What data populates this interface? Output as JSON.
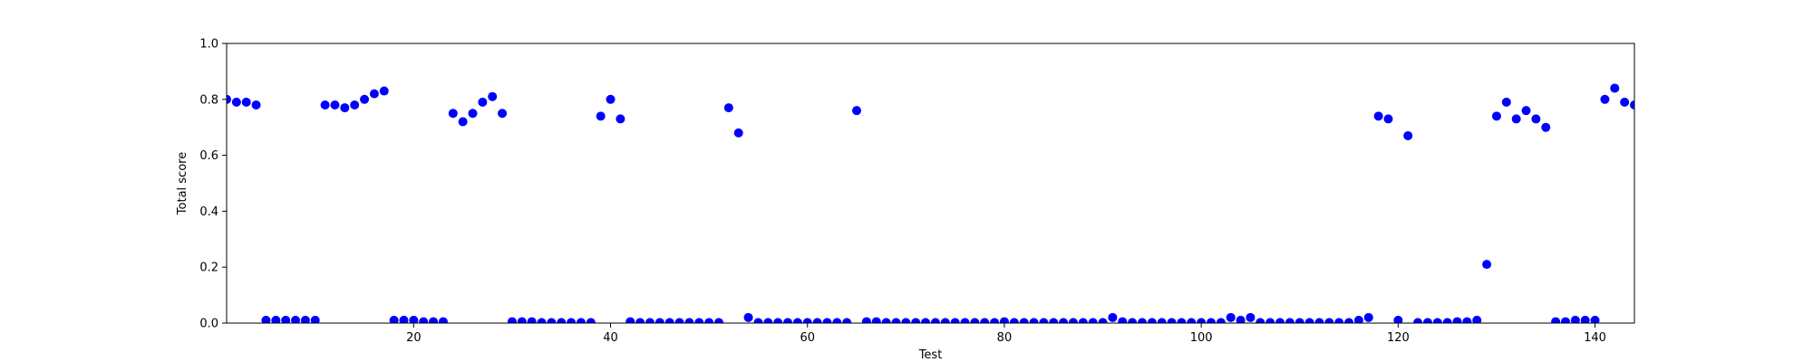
{
  "chart_data": {
    "type": "scatter",
    "title": "",
    "xlabel": "Test",
    "ylabel": "Total score",
    "xlim": [
      1,
      144
    ],
    "ylim": [
      0.0,
      1.0
    ],
    "xticks": [
      20,
      40,
      60,
      80,
      100,
      120,
      140
    ],
    "yticks": [
      0.0,
      0.2,
      0.4,
      0.6,
      0.8,
      1.0
    ],
    "xtick_labels": [
      "20",
      "40",
      "60",
      "80",
      "100",
      "120",
      "140"
    ],
    "ytick_labels": [
      "0.0",
      "0.2",
      "0.4",
      "0.6",
      "0.8",
      "1.0"
    ],
    "grid": false,
    "marker_color": "#0000ff",
    "x": [
      1,
      2,
      3,
      4,
      5,
      6,
      7,
      8,
      9,
      10,
      11,
      12,
      13,
      14,
      15,
      16,
      17,
      18,
      19,
      20,
      21,
      22,
      23,
      24,
      25,
      26,
      27,
      28,
      29,
      30,
      31,
      32,
      33,
      34,
      35,
      36,
      37,
      38,
      39,
      40,
      41,
      42,
      43,
      44,
      45,
      46,
      47,
      48,
      49,
      50,
      51,
      52,
      53,
      54,
      55,
      56,
      57,
      58,
      59,
      60,
      61,
      62,
      63,
      64,
      65,
      66,
      67,
      68,
      69,
      70,
      71,
      72,
      73,
      74,
      75,
      76,
      77,
      78,
      79,
      80,
      81,
      82,
      83,
      84,
      85,
      86,
      87,
      88,
      89,
      90,
      91,
      92,
      93,
      94,
      95,
      96,
      97,
      98,
      99,
      100,
      101,
      102,
      103,
      104,
      105,
      106,
      107,
      108,
      109,
      110,
      111,
      112,
      113,
      114,
      115,
      116,
      117,
      118,
      119,
      120,
      121,
      122,
      123,
      124,
      125,
      126,
      127,
      128,
      129,
      130,
      131,
      132,
      133,
      134,
      135,
      136,
      137,
      138,
      139,
      140,
      141,
      142,
      143,
      144
    ],
    "y": [
      0.8,
      0.79,
      0.79,
      0.78,
      0.01,
      0.01,
      0.01,
      0.01,
      0.01,
      0.01,
      0.78,
      0.78,
      0.77,
      0.78,
      0.8,
      0.82,
      0.83,
      0.01,
      0.01,
      0.01,
      0.005,
      0.005,
      0.005,
      0.75,
      0.72,
      0.75,
      0.79,
      0.81,
      0.75,
      0.005,
      0.005,
      0.005,
      0.002,
      0.002,
      0.002,
      0.002,
      0.002,
      0.002,
      0.74,
      0.8,
      0.73,
      0.005,
      0.002,
      0.002,
      0.002,
      0.002,
      0.002,
      0.002,
      0.002,
      0.002,
      0.002,
      0.77,
      0.68,
      0.02,
      0.002,
      0.002,
      0.002,
      0.002,
      0.002,
      0.002,
      0.002,
      0.002,
      0.002,
      0.002,
      0.76,
      0.005,
      0.005,
      0.002,
      0.002,
      0.002,
      0.002,
      0.002,
      0.002,
      0.002,
      0.002,
      0.002,
      0.002,
      0.002,
      0.002,
      0.005,
      0.002,
      0.002,
      0.002,
      0.002,
      0.002,
      0.002,
      0.002,
      0.002,
      0.002,
      0.002,
      0.02,
      0.005,
      0.002,
      0.002,
      0.002,
      0.002,
      0.002,
      0.002,
      0.002,
      0.002,
      0.002,
      0.002,
      0.02,
      0.01,
      0.02,
      0.002,
      0.002,
      0.002,
      0.002,
      0.002,
      0.002,
      0.002,
      0.002,
      0.002,
      0.002,
      0.01,
      0.02,
      0.74,
      0.73,
      0.01,
      0.67,
      0.002,
      0.002,
      0.002,
      0.002,
      0.005,
      0.005,
      0.01,
      0.21,
      0.74,
      0.79,
      0.73,
      0.76,
      0.73,
      0.7,
      0.005,
      0.005,
      0.01,
      0.01,
      0.01,
      0.8,
      0.84,
      0.79,
      0.78
    ]
  }
}
